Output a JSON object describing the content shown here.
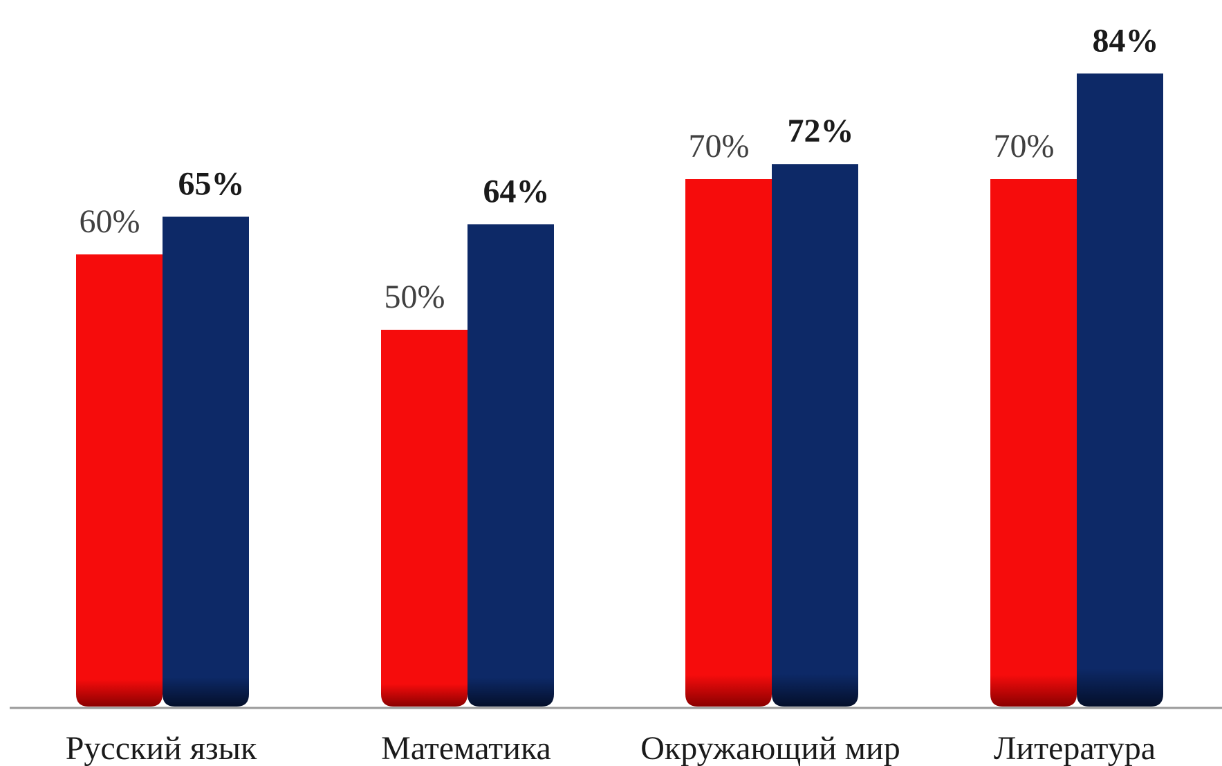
{
  "chart_data": {
    "type": "bar",
    "categories": [
      "Русский язык",
      "Математика",
      "Окружающий мир",
      "Литература"
    ],
    "series": [
      {
        "values": [
          60,
          50,
          70,
          70
        ],
        "labels": [
          "60%",
          "50%",
          "70%",
          "70%"
        ],
        "color": "#f60c0c",
        "label_style": "normal"
      },
      {
        "values": [
          65,
          64,
          72,
          84
        ],
        "labels": [
          "65%",
          "64%",
          "72%",
          "84%"
        ],
        "color": "#0d2967",
        "label_style": "bold"
      }
    ],
    "ylim": [
      0,
      84
    ],
    "grid": false,
    "legend": "none",
    "axis_color": "#9a9a9a"
  }
}
